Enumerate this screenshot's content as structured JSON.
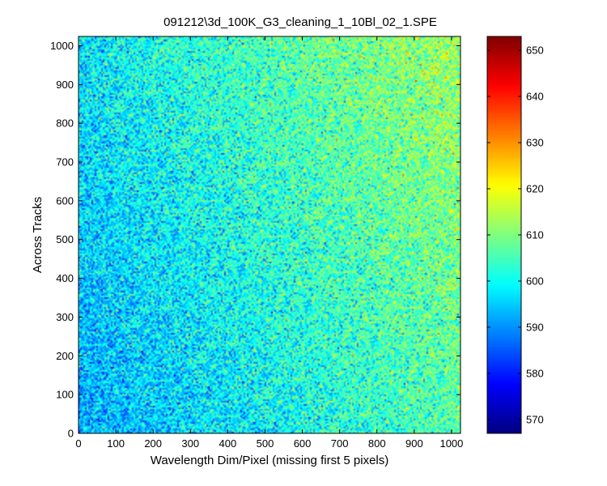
{
  "chart_data": {
    "type": "heatmap",
    "title": "091212\\3d_100K_G3_cleaning_1_10Bl_02_1.SPE",
    "xlabel": "Wavelength Dim/Pixel (missing first 5 pixels)",
    "ylabel": "Across Tracks",
    "xlim": [
      0,
      1024
    ],
    "ylim": [
      0,
      1024
    ],
    "x_ticks": [
      0,
      100,
      200,
      300,
      400,
      500,
      600,
      700,
      800,
      900,
      1000
    ],
    "y_ticks": [
      0,
      100,
      200,
      300,
      400,
      500,
      600,
      700,
      800,
      900,
      1000
    ],
    "colormap": "jet",
    "color_range": [
      567,
      653
    ],
    "colorbar_ticks": [
      570,
      580,
      590,
      600,
      610,
      620,
      630,
      640,
      650
    ],
    "surface": {
      "description_values": "mean intensity increases from about 592 at bottom-left to about 612 at top-right with per-pixel noise",
      "corner_means": {
        "bottom_left": 592,
        "top_left": 598,
        "bottom_right": 606,
        "top_right": 613
      },
      "noise_sd": 7
    },
    "grid": false,
    "legend": "none"
  }
}
